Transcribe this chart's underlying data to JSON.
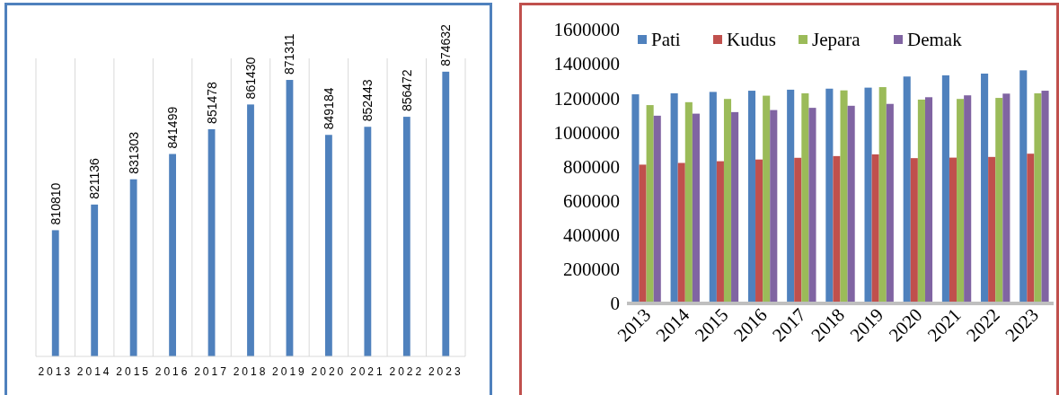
{
  "chart_data": [
    {
      "type": "bar",
      "categories": [
        "2013",
        "2014",
        "2015",
        "2016",
        "2017",
        "2018",
        "2019",
        "2020",
        "2021",
        "2022",
        "2023"
      ],
      "values": [
        810810,
        821136,
        831303,
        841499,
        851478,
        861430,
        871311,
        849184,
        852443,
        856472,
        874632
      ],
      "color": "#4f81bd",
      "ylim": [
        760000,
        880000
      ],
      "data_labels": true,
      "grid": "x",
      "tick_labels": "x"
    },
    {
      "type": "bar",
      "categories": [
        "2013",
        "2014",
        "2015",
        "2016",
        "2017",
        "2018",
        "2019",
        "2020",
        "2021",
        "2022",
        "2023"
      ],
      "series": [
        {
          "name": "Pati",
          "color": "#4f81bd",
          "values": [
            1222000,
            1228000,
            1236000,
            1243000,
            1249000,
            1255000,
            1261000,
            1326000,
            1333000,
            1343000,
            1362000
          ]
        },
        {
          "name": "Kudus",
          "color": "#c0504d",
          "values": [
            811000,
            821000,
            831000,
            841000,
            851000,
            861000,
            871000,
            849000,
            852000,
            856000,
            875000
          ]
        },
        {
          "name": "Jepara",
          "color": "#9bbb59",
          "values": [
            1159000,
            1176000,
            1195000,
            1214000,
            1228000,
            1245000,
            1264000,
            1191000,
            1195000,
            1201000,
            1228000
          ]
        },
        {
          "name": "Demak",
          "color": "#8064a2",
          "values": [
            1097000,
            1109000,
            1118000,
            1130000,
            1143000,
            1155000,
            1166000,
            1205000,
            1216000,
            1226000,
            1243000
          ]
        }
      ],
      "ylim": [
        0,
        1600000
      ],
      "yticks": [
        0,
        200000,
        400000,
        600000,
        800000,
        1000000,
        1200000,
        1400000,
        1600000
      ],
      "legend": "top"
    }
  ]
}
